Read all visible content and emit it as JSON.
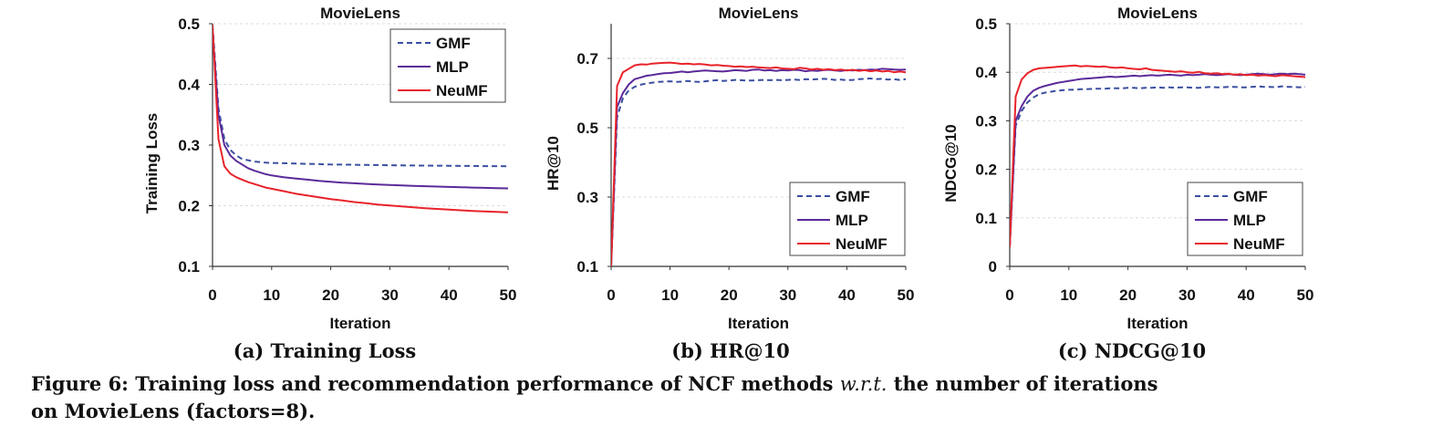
{
  "chart_data": [
    {
      "type": "line",
      "title": "MovieLens",
      "subcaption": "(a) Training Loss",
      "xlabel": "Iteration",
      "ylabel": "Training Loss",
      "xlim": [
        0,
        50
      ],
      "ylim": [
        0.1,
        0.5
      ],
      "xticks": [
        "0",
        "10",
        "20",
        "30",
        "40",
        "50"
      ],
      "yticks": [
        "0.1",
        "0.2",
        "0.3",
        "0.4",
        "0.5"
      ],
      "grid": true,
      "legend": "top-right",
      "x": [
        0,
        1,
        2,
        3,
        4,
        5,
        6,
        7,
        8,
        9,
        10,
        12,
        14,
        16,
        18,
        20,
        22,
        24,
        26,
        28,
        30,
        32,
        34,
        36,
        38,
        40,
        42,
        44,
        46,
        48,
        50
      ],
      "series": [
        {
          "name": "GMF",
          "color": "#3a4fa0",
          "dash": "dashed",
          "values": [
            0.498,
            0.36,
            0.31,
            0.292,
            0.283,
            0.277,
            0.275,
            0.273,
            0.272,
            0.271,
            0.2705,
            0.27,
            0.2695,
            0.269,
            0.2685,
            0.268,
            0.2678,
            0.2675,
            0.2672,
            0.267,
            0.2668,
            0.2665,
            0.2663,
            0.2661,
            0.266,
            0.2658,
            0.2656,
            0.2655,
            0.2653,
            0.2652,
            0.265
          ]
        },
        {
          "name": "MLP",
          "color": "#5b2a9a",
          "dash": "solid",
          "values": [
            0.49,
            0.35,
            0.3,
            0.283,
            0.274,
            0.268,
            0.262,
            0.258,
            0.255,
            0.252,
            0.25,
            0.247,
            0.245,
            0.243,
            0.241,
            0.2395,
            0.238,
            0.237,
            0.236,
            0.235,
            0.2343,
            0.2335,
            0.2328,
            0.2322,
            0.2316,
            0.231,
            0.2305,
            0.23,
            0.2295,
            0.229,
            0.2285
          ]
        },
        {
          "name": "NeuMF",
          "color": "#e8232a",
          "dash": "solid",
          "values": [
            0.498,
            0.31,
            0.265,
            0.253,
            0.247,
            0.243,
            0.239,
            0.236,
            0.233,
            0.23,
            0.228,
            0.224,
            0.22,
            0.217,
            0.214,
            0.211,
            0.2085,
            0.206,
            0.204,
            0.202,
            0.2005,
            0.199,
            0.1975,
            0.196,
            0.1948,
            0.1935,
            0.1925,
            0.1915,
            0.1905,
            0.1897,
            0.189
          ]
        }
      ]
    },
    {
      "type": "line",
      "title": "MovieLens",
      "subcaption": "(b) HR@10",
      "xlabel": "Iteration",
      "ylabel": "HR@10",
      "xlim": [
        0,
        50
      ],
      "ylim": [
        0.1,
        0.8
      ],
      "xticks": [
        "0",
        "10",
        "20",
        "30",
        "40",
        "50"
      ],
      "yticks": [
        "0.1",
        "0.3",
        "0.5",
        "0.7"
      ],
      "ytick_values": [
        0.1,
        0.3,
        0.5,
        0.7
      ],
      "grid": true,
      "legend": "bottom-right",
      "x": [
        0,
        1,
        2,
        3,
        4,
        5,
        6,
        7,
        8,
        9,
        10,
        11,
        12,
        13,
        14,
        15,
        16,
        17,
        18,
        19,
        20,
        21,
        22,
        23,
        24,
        25,
        26,
        27,
        28,
        29,
        30,
        31,
        32,
        33,
        34,
        35,
        36,
        37,
        38,
        39,
        40,
        41,
        42,
        43,
        44,
        45,
        46,
        47,
        48,
        49,
        50
      ],
      "series": [
        {
          "name": "GMF",
          "color": "#3a4fa0",
          "dash": "dashed",
          "values": [
            0.1,
            0.53,
            0.585,
            0.608,
            0.618,
            0.624,
            0.628,
            0.63,
            0.632,
            0.633,
            0.634,
            0.632,
            0.633,
            0.635,
            0.633,
            0.632,
            0.634,
            0.636,
            0.637,
            0.635,
            0.636,
            0.638,
            0.637,
            0.636,
            0.636,
            0.637,
            0.638,
            0.637,
            0.638,
            0.637,
            0.638,
            0.639,
            0.638,
            0.64,
            0.639,
            0.64,
            0.641,
            0.64,
            0.638,
            0.639,
            0.637,
            0.638,
            0.64,
            0.641,
            0.642,
            0.64,
            0.641,
            0.639,
            0.64,
            0.638,
            0.64
          ]
        },
        {
          "name": "MLP",
          "color": "#5b2a9a",
          "dash": "solid",
          "values": [
            0.1,
            0.56,
            0.6,
            0.625,
            0.64,
            0.645,
            0.65,
            0.652,
            0.655,
            0.657,
            0.658,
            0.66,
            0.662,
            0.66,
            0.662,
            0.664,
            0.665,
            0.664,
            0.663,
            0.662,
            0.664,
            0.666,
            0.665,
            0.664,
            0.667,
            0.668,
            0.665,
            0.666,
            0.664,
            0.666,
            0.665,
            0.667,
            0.666,
            0.663,
            0.665,
            0.664,
            0.666,
            0.667,
            0.665,
            0.664,
            0.666,
            0.665,
            0.667,
            0.666,
            0.668,
            0.667,
            0.67,
            0.669,
            0.668,
            0.667,
            0.668
          ]
        },
        {
          "name": "NeuMF",
          "color": "#e8232a",
          "dash": "solid",
          "values": [
            0.1,
            0.62,
            0.66,
            0.67,
            0.68,
            0.683,
            0.682,
            0.685,
            0.686,
            0.687,
            0.688,
            0.686,
            0.684,
            0.685,
            0.683,
            0.684,
            0.682,
            0.68,
            0.681,
            0.679,
            0.678,
            0.676,
            0.677,
            0.675,
            0.676,
            0.674,
            0.673,
            0.672,
            0.674,
            0.671,
            0.67,
            0.669,
            0.673,
            0.671,
            0.668,
            0.67,
            0.667,
            0.669,
            0.666,
            0.668,
            0.665,
            0.667,
            0.664,
            0.666,
            0.663,
            0.665,
            0.662,
            0.664,
            0.66,
            0.662,
            0.66
          ]
        }
      ]
    },
    {
      "type": "line",
      "title": "MovieLens",
      "subcaption": "(c) NDCG@10",
      "xlabel": "Iteration",
      "ylabel": "NDCG@10",
      "xlim": [
        0,
        50
      ],
      "ylim": [
        0,
        0.5
      ],
      "xticks": [
        "0",
        "10",
        "20",
        "30",
        "40",
        "50"
      ],
      "yticks": [
        "0",
        "0.1",
        "0.2",
        "0.3",
        "0.4",
        "0.5"
      ],
      "grid": true,
      "legend": "bottom-right",
      "x": [
        0,
        1,
        2,
        3,
        4,
        5,
        6,
        7,
        8,
        9,
        10,
        11,
        12,
        13,
        14,
        15,
        16,
        17,
        18,
        19,
        20,
        21,
        22,
        23,
        24,
        25,
        26,
        27,
        28,
        29,
        30,
        31,
        32,
        33,
        34,
        35,
        36,
        37,
        38,
        39,
        40,
        41,
        42,
        43,
        44,
        45,
        46,
        47,
        48,
        49,
        50
      ],
      "series": [
        {
          "name": "GMF",
          "color": "#3a4fa0",
          "dash": "dashed",
          "values": [
            0.04,
            0.29,
            0.32,
            0.338,
            0.348,
            0.355,
            0.358,
            0.36,
            0.362,
            0.363,
            0.364,
            0.364,
            0.365,
            0.365,
            0.366,
            0.366,
            0.366,
            0.367,
            0.367,
            0.367,
            0.368,
            0.368,
            0.367,
            0.368,
            0.368,
            0.369,
            0.368,
            0.369,
            0.368,
            0.369,
            0.369,
            0.368,
            0.368,
            0.369,
            0.37,
            0.369,
            0.369,
            0.37,
            0.37,
            0.369,
            0.369,
            0.37,
            0.371,
            0.37,
            0.37,
            0.369,
            0.371,
            0.37,
            0.37,
            0.369,
            0.37
          ]
        },
        {
          "name": "MLP",
          "color": "#5b2a9a",
          "dash": "solid",
          "values": [
            0.04,
            0.3,
            0.33,
            0.35,
            0.362,
            0.368,
            0.372,
            0.375,
            0.378,
            0.38,
            0.382,
            0.384,
            0.386,
            0.387,
            0.388,
            0.389,
            0.39,
            0.391,
            0.39,
            0.391,
            0.392,
            0.393,
            0.392,
            0.393,
            0.394,
            0.393,
            0.394,
            0.395,
            0.394,
            0.393,
            0.395,
            0.394,
            0.395,
            0.396,
            0.395,
            0.394,
            0.395,
            0.396,
            0.395,
            0.394,
            0.395,
            0.396,
            0.397,
            0.396,
            0.395,
            0.396,
            0.397,
            0.396,
            0.397,
            0.396,
            0.395
          ]
        },
        {
          "name": "NeuMF",
          "color": "#e8232a",
          "dash": "solid",
          "values": [
            0.04,
            0.35,
            0.385,
            0.398,
            0.405,
            0.408,
            0.409,
            0.41,
            0.411,
            0.412,
            0.413,
            0.414,
            0.412,
            0.413,
            0.412,
            0.411,
            0.412,
            0.41,
            0.409,
            0.41,
            0.408,
            0.407,
            0.406,
            0.408,
            0.405,
            0.404,
            0.403,
            0.402,
            0.401,
            0.402,
            0.4,
            0.399,
            0.401,
            0.398,
            0.397,
            0.398,
            0.396,
            0.397,
            0.395,
            0.396,
            0.394,
            0.395,
            0.393,
            0.394,
            0.393,
            0.392,
            0.394,
            0.393,
            0.392,
            0.391,
            0.39
          ]
        }
      ]
    }
  ],
  "caption": {
    "line1_part1": "Figure 6: Training loss and recommendation performance of NCF methods ",
    "line1_italic": "w.r.t.",
    "line1_part2": " the number of iterations",
    "line2": "on MovieLens (factors=8)."
  }
}
